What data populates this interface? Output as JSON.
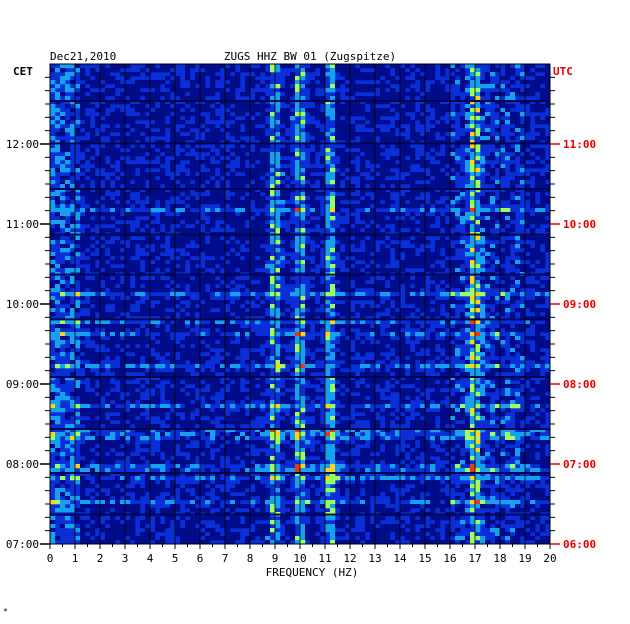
{
  "chart_data": {
    "type": "heatmap",
    "title": "ZUGS HHZ BW 01 (Zugspitze)",
    "date": "Dec21,2010",
    "xlabel": "FREQUENCY (HZ)",
    "xlim": [
      0,
      20
    ],
    "x_ticks": [
      "0",
      "1",
      "2",
      "3",
      "4",
      "5",
      "6",
      "7",
      "8",
      "9",
      "10",
      "11",
      "12",
      "13",
      "14",
      "15",
      "16",
      "17",
      "18",
      "19",
      "20"
    ],
    "left_axis": {
      "label": "CET",
      "ticks": [
        {
          "label": "12:00",
          "hours_from_top": 1
        },
        {
          "label": "11:00",
          "hours_from_top": 2
        },
        {
          "label": "10:00",
          "hours_from_top": 3
        },
        {
          "label": "09:00",
          "hours_from_top": 4
        },
        {
          "label": "08:00",
          "hours_from_top": 5
        },
        {
          "label": "07:00",
          "hours_from_top": 6
        }
      ]
    },
    "right_axis": {
      "label": "UTC",
      "color": "#e00000",
      "ticks": [
        {
          "label": "11:00",
          "hours_from_top": 1
        },
        {
          "label": "10:00",
          "hours_from_top": 2
        },
        {
          "label": "09:00",
          "hours_from_top": 3
        },
        {
          "label": "08:00",
          "hours_from_top": 4
        },
        {
          "label": "07:00",
          "hours_from_top": 5
        },
        {
          "label": "06:00",
          "hours_from_top": 6
        }
      ]
    },
    "time_span_hours": 6,
    "dominant_frequency_bands_hz": [
      9,
      10,
      11.2,
      17
    ],
    "colors": {
      "background": "#0a2ed8",
      "low": "#000c8a",
      "mid": "#16a0f0",
      "high": "#9cff60",
      "peak": "#ffd21a",
      "max": "#e83a12"
    }
  },
  "corner_mark": "*"
}
